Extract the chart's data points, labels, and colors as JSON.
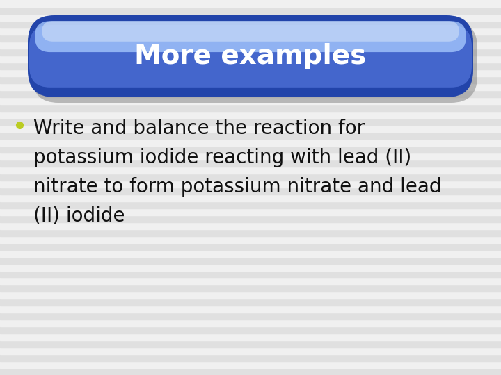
{
  "title": "More examples",
  "title_color": "#ffffff",
  "title_fontsize": 28,
  "title_font": "DejaVu Sans",
  "bullet_text_line1": "Write and balance the reaction for",
  "bullet_text_line2": "potassium iodide reacting with lead (II)",
  "bullet_text_line3": "nitrate to form potassium nitrate and lead",
  "bullet_text_line4": "(II) iodide",
  "bullet_color": "#111111",
  "bullet_fontsize": 20,
  "bullet_dot_color": "#bbcc22",
  "background_stripe_color1": "#e0e0e0",
  "background_stripe_color2": "#f0f0f0",
  "banner_dark": "#2244aa",
  "banner_mid": "#4466cc",
  "banner_light": "#6688ee",
  "banner_highlight": "#88aaff",
  "banner_gloss": "#aaccff",
  "banner_shadow": "#888888"
}
